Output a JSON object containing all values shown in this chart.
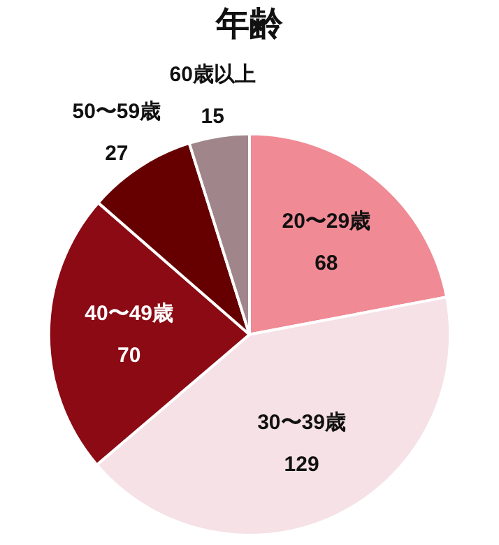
{
  "chart_data": {
    "type": "pie",
    "title": "年齢",
    "categories": [
      "20〜29歳",
      "30〜39歳",
      "40〜49歳",
      "50〜59歳",
      "60歳以上"
    ],
    "values": [
      68,
      129,
      70,
      27,
      15
    ],
    "colors": [
      "#f08a94",
      "#f5e1e6",
      "#8b0a14",
      "#660000",
      "#a0868a"
    ],
    "data_labels": true,
    "legend": false
  }
}
